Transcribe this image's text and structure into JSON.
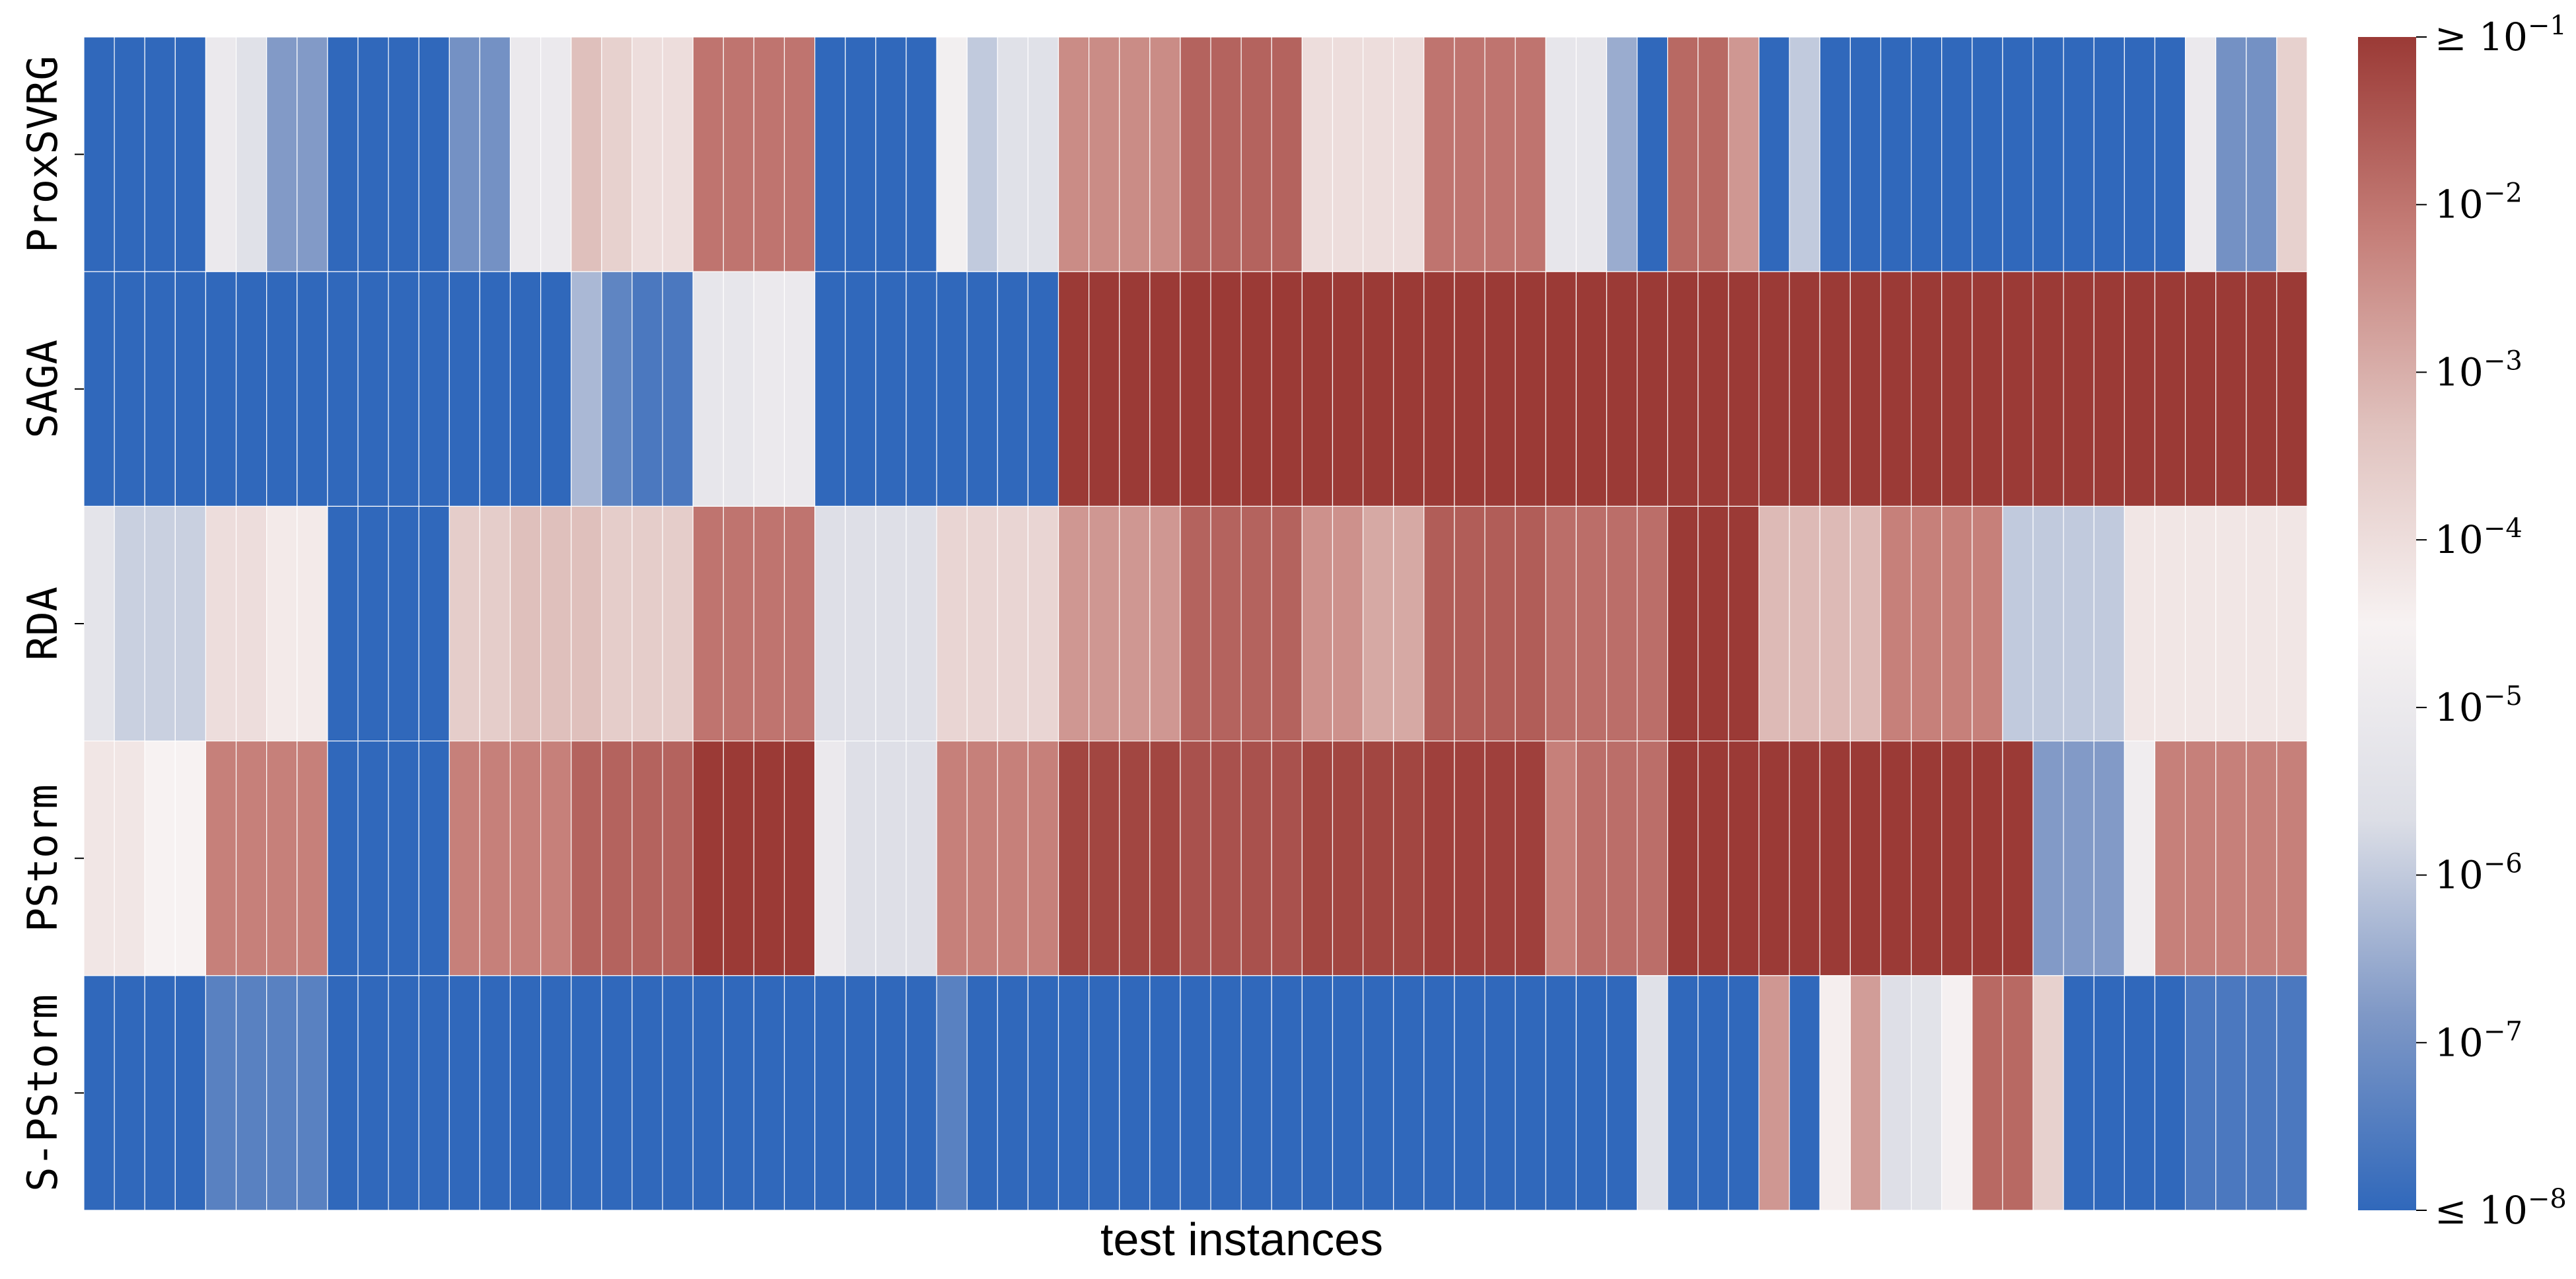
{
  "chart_data": {
    "type": "heatmap",
    "xlabel": "test instances",
    "ylabel": "",
    "colorscale": "log10",
    "vmin": 1e-08,
    "vmax": 0.1,
    "colorbar_ticks": [
      {
        "prefix": "≤ ",
        "base": "10",
        "exp": "−8",
        "value": -8
      },
      {
        "prefix": "",
        "base": "10",
        "exp": "−7",
        "value": -7
      },
      {
        "prefix": "",
        "base": "10",
        "exp": "−6",
        "value": -6
      },
      {
        "prefix": "",
        "base": "10",
        "exp": "−5",
        "value": -5
      },
      {
        "prefix": "",
        "base": "10",
        "exp": "−4",
        "value": -4
      },
      {
        "prefix": "",
        "base": "10",
        "exp": "−3",
        "value": -3
      },
      {
        "prefix": "",
        "base": "10",
        "exp": "−2",
        "value": -2
      },
      {
        "prefix": "≥ ",
        "base": "10",
        "exp": "−1",
        "value": -1
      }
    ],
    "colormap": [
      "#3068bb",
      "#7f98c6",
      "#dcdee6",
      "#f7f2f2",
      "#e0c2be",
      "#c57e78",
      "#9b3a36"
    ],
    "rows": [
      {
        "name": "ProxSVRG",
        "log10_values": [
          -8,
          -8,
          -8,
          -8,
          -5,
          -5.5,
          -6.8,
          -6.8,
          -8,
          -8,
          -8,
          -8,
          -7,
          -7,
          -5,
          -5,
          -3.3,
          -3.7,
          -4,
          -4,
          -2,
          -2,
          -2,
          -2,
          -8,
          -8,
          -8,
          -8,
          -4.7,
          -6,
          -5.5,
          -5.5,
          -2.4,
          -2.4,
          -2.4,
          -2.4,
          -1.7,
          -1.7,
          -1.7,
          -1.7,
          -4,
          -4,
          -4,
          -4,
          -2,
          -2,
          -2,
          -2,
          -5.2,
          -5.2,
          -6.5,
          -8,
          -1.8,
          -1.8,
          -2.6,
          -8,
          -6,
          -8,
          -8,
          -8,
          -8,
          -8,
          -8,
          -8,
          -8,
          -8,
          -8,
          -8,
          -8,
          -5,
          -7,
          -7,
          -3.7
        ]
      },
      {
        "name": "SAGA",
        "log10_values": [
          -8,
          -8,
          -8,
          -8,
          -8,
          -8,
          -8,
          -8,
          -8,
          -8,
          -8,
          -8,
          -8,
          -8,
          -8,
          -8,
          -6.3,
          -7.3,
          -7.6,
          -7.6,
          -5.2,
          -5.2,
          -5,
          -5,
          -8,
          -8,
          -8,
          -8,
          -8,
          -8,
          -8,
          -8,
          -1,
          -1,
          -1,
          -1,
          -1,
          -1,
          -1,
          -1,
          -1,
          -1,
          -1,
          -1,
          -1,
          -1,
          -1,
          -1,
          -1,
          -1,
          -1,
          -1,
          -1,
          -1,
          -1,
          -1,
          -1,
          -1,
          -1,
          -1,
          -1,
          -1,
          -1,
          -1,
          -1,
          -1,
          -1,
          -1,
          -1,
          -1,
          -1,
          -1,
          -1
        ]
      },
      {
        "name": "RDA",
        "log10_values": [
          -5.3,
          -5.9,
          -5.9,
          -5.9,
          -4,
          -4,
          -4.3,
          -4.3,
          -8,
          -8,
          -8,
          -8,
          -3.6,
          -3.6,
          -3.3,
          -3.3,
          -3.3,
          -3.6,
          -3.6,
          -3.6,
          -2,
          -2,
          -2,
          -2,
          -5.6,
          -5.6,
          -5.6,
          -5.6,
          -3.8,
          -3.8,
          -3.8,
          -3.8,
          -2.6,
          -2.6,
          -2.6,
          -2.6,
          -1.7,
          -1.7,
          -1.7,
          -1.7,
          -2.5,
          -2.5,
          -2.9,
          -2.9,
          -1.6,
          -1.6,
          -1.6,
          -1.6,
          -1.9,
          -1.9,
          -1.9,
          -1.9,
          -1,
          -1,
          -1,
          -3.2,
          -3.2,
          -3.2,
          -3.2,
          -2.2,
          -2.2,
          -2.2,
          -2.2,
          -6,
          -6,
          -6,
          -6,
          -4.2,
          -4.2,
          -4.2,
          -4.2,
          -4.2,
          -4.2
        ]
      },
      {
        "name": "PStorm",
        "log10_values": [
          -4.2,
          -4.2,
          -4.5,
          -4.5,
          -2.2,
          -2.2,
          -2.2,
          -2.2,
          -8,
          -8,
          -8,
          -8,
          -2.2,
          -2.2,
          -2.2,
          -2.2,
          -1.7,
          -1.7,
          -1.7,
          -1.7,
          -1,
          -1,
          -1,
          -1,
          -5,
          -5.6,
          -5.6,
          -5.6,
          -2.2,
          -2.2,
          -2.2,
          -2.2,
          -1.2,
          -1.2,
          -1.2,
          -1.2,
          -1.4,
          -1.4,
          -1.4,
          -1.4,
          -1.2,
          -1.2,
          -1.2,
          -1.2,
          -1.1,
          -1.1,
          -1.1,
          -1.1,
          -2.2,
          -1.9,
          -1.9,
          -1.9,
          -1,
          -1,
          -1,
          -1,
          -1,
          -1,
          -1,
          -1,
          -1,
          -1,
          -1,
          -1,
          -6.8,
          -6.8,
          -6.8,
          -4.8,
          -2.2,
          -2.2,
          -2.2,
          -2.2,
          -2.2
        ]
      },
      {
        "name": "S-PStorm",
        "log10_values": [
          -8,
          -8,
          -8,
          -8,
          -7.4,
          -7.4,
          -7.4,
          -7.4,
          -8,
          -8,
          -8,
          -8,
          -8,
          -8,
          -8,
          -8,
          -8,
          -8,
          -8,
          -8,
          -8,
          -8,
          -8,
          -8,
          -8,
          -8,
          -8,
          -8,
          -7.4,
          -8,
          -8,
          -8,
          -8,
          -8,
          -8,
          -8,
          -8,
          -8,
          -8,
          -8,
          -8,
          -8,
          -8,
          -8,
          -8,
          -8,
          -8,
          -8,
          -8,
          -8,
          -8,
          -5.5,
          -8,
          -8,
          -8,
          -2.6,
          -8,
          -4.4,
          -2.7,
          -5.6,
          -5.4,
          -4.6,
          -1.8,
          -1.8,
          -3.7,
          -8,
          -8,
          -8,
          -8,
          -7.6,
          -7.6,
          -7.6,
          -7.6
        ]
      }
    ]
  }
}
